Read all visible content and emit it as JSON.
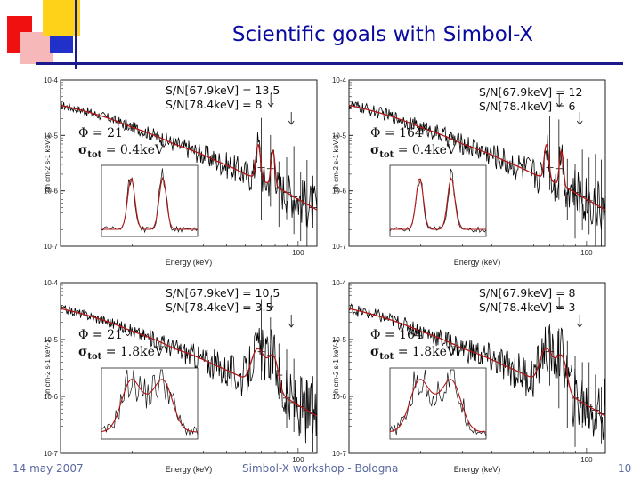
{
  "slide": {
    "title": "Scientific goals with Simbol-X",
    "footer_left": "14 may 2007",
    "footer_center": "Simbol-X workshop - Bologna",
    "footer_right": "10"
  },
  "colors": {
    "title": "#0a0aa0",
    "spectrum": "#000000",
    "model": "#b01818",
    "deco_red": "#f01010",
    "deco_yellow": "#ffd21a",
    "deco_blue": "#2030c8"
  },
  "chart_data": [
    {
      "type": "line",
      "panel": "top-left",
      "xlabel": "Energy (keV)",
      "ylabel": "ph cm-2 s-1 keV-1",
      "ytick_labels": [
        "10-4",
        "10-5",
        "10-6",
        "10-7"
      ],
      "xtick_labels": [
        "100"
      ],
      "xlim": [
        10,
        120
      ],
      "ylim": [
        1e-07,
        0.0001
      ],
      "sn": [
        "S/N[67.9keV] = 13.5",
        "S/N[78.4keV] = 8"
      ],
      "phi": "Φ  = 21’’",
      "sigma": "σtot = 0.4keV",
      "sigma_sym": "σ",
      "sigma_sub": "tot",
      "sigma_val": "= 0.4keV",
      "line_energies_keV": [
        67.9,
        78.4
      ],
      "series": [
        {
          "name": "data",
          "continuum_points": [
            [
              10,
              3.5e-05
            ],
            [
              20,
              1.4e-05
            ],
            [
              30,
              7e-06
            ],
            [
              45,
              3.5e-06
            ],
            [
              60,
              2e-06
            ],
            [
              80,
              1.2e-06
            ],
            [
              100,
              7e-07
            ],
            [
              120,
              4.5e-07
            ]
          ]
        },
        {
          "name": "model",
          "continuum_points": [
            [
              10,
              3.5e-05
            ],
            [
              20,
              1.4e-05
            ],
            [
              30,
              7e-06
            ],
            [
              45,
              3.5e-06
            ],
            [
              60,
              2e-06
            ],
            [
              80,
              1.2e-06
            ],
            [
              100,
              7e-07
            ],
            [
              120,
              4.5e-07
            ]
          ]
        }
      ]
    },
    {
      "type": "line",
      "panel": "top-right",
      "xlabel": "Energy (keV)",
      "ylabel": "ph cm-2 s-1 keV-1",
      "ytick_labels": [
        "10-4",
        "10-5",
        "10-6",
        "10-7"
      ],
      "xtick_labels": [
        "100"
      ],
      "xlim": [
        10,
        120
      ],
      "ylim": [
        1e-07,
        0.0001
      ],
      "sn": [
        "S/N[67.9keV] = 12",
        "S/N[78.4keV] = 6"
      ],
      "phi": "Φ  = 164’’",
      "sigma": "σtot = 0.4keV",
      "sigma_sym": "σ",
      "sigma_sub": "tot",
      "sigma_val": "= 0.4keV",
      "line_energies_keV": [
        67.9,
        78.4
      ],
      "series": [
        {
          "name": "data",
          "continuum_points": [
            [
              10,
              3.5e-05
            ],
            [
              20,
              1.4e-05
            ],
            [
              30,
              7e-06
            ],
            [
              45,
              3.5e-06
            ],
            [
              60,
              2e-06
            ],
            [
              80,
              1.2e-06
            ],
            [
              100,
              7e-07
            ],
            [
              120,
              4.5e-07
            ]
          ]
        },
        {
          "name": "model",
          "continuum_points": [
            [
              10,
              3.5e-05
            ],
            [
              20,
              1.4e-05
            ],
            [
              30,
              7e-06
            ],
            [
              45,
              3.5e-06
            ],
            [
              60,
              2e-06
            ],
            [
              80,
              1.2e-06
            ],
            [
              100,
              7e-07
            ],
            [
              120,
              4.5e-07
            ]
          ]
        }
      ]
    },
    {
      "type": "line",
      "panel": "bottom-left",
      "xlabel": "Energy (keV)",
      "ylabel": "ph cm-2 s-1 keV-1",
      "ytick_labels": [
        "10-4",
        "10-5",
        "10-6",
        "10-7"
      ],
      "xtick_labels": [
        "100"
      ],
      "xlim": [
        10,
        120
      ],
      "ylim": [
        1e-07,
        0.0001
      ],
      "sn": [
        "S/N[67.9keV] = 10.5",
        "S/N[78.4keV] = 3.5"
      ],
      "phi": "Φ  = 21’’",
      "sigma": "σtot = 1.8keV",
      "sigma_sym": "σ",
      "sigma_sub": "tot",
      "sigma_val": "= 1.8keV",
      "line_energies_keV": [
        67.9,
        78.4
      ],
      "series": [
        {
          "name": "data",
          "continuum_points": [
            [
              10,
              3.5e-05
            ],
            [
              20,
              1.4e-05
            ],
            [
              30,
              7e-06
            ],
            [
              45,
              3.5e-06
            ],
            [
              60,
              2e-06
            ],
            [
              80,
              1.2e-06
            ],
            [
              100,
              7e-07
            ],
            [
              120,
              4.5e-07
            ]
          ]
        },
        {
          "name": "model",
          "continuum_points": [
            [
              10,
              3.5e-05
            ],
            [
              20,
              1.4e-05
            ],
            [
              30,
              7e-06
            ],
            [
              45,
              3.5e-06
            ],
            [
              60,
              2e-06
            ],
            [
              80,
              1.2e-06
            ],
            [
              100,
              7e-07
            ],
            [
              120,
              4.5e-07
            ]
          ]
        }
      ]
    },
    {
      "type": "line",
      "panel": "bottom-right",
      "xlabel": "Energy (keV)",
      "ylabel": "ph cm-2 s-1 keV-1",
      "ytick_labels": [
        "10-4",
        "10-5",
        "10-6",
        "10-7"
      ],
      "xtick_labels": [
        "100"
      ],
      "xlim": [
        10,
        120
      ],
      "ylim": [
        1e-07,
        0.0001
      ],
      "sn": [
        "S/N[67.9keV] = 8",
        "S/N[78.4keV] = 3"
      ],
      "phi": "Φ  = 164’’",
      "sigma": "σtot = 1.8keV",
      "sigma_sym": "σ",
      "sigma_sub": "tot",
      "sigma_val": "= 1.8keV",
      "line_energies_keV": [
        67.9,
        78.4
      ],
      "series": [
        {
          "name": "data",
          "continuum_points": [
            [
              10,
              3.5e-05
            ],
            [
              20,
              1.4e-05
            ],
            [
              30,
              7e-06
            ],
            [
              45,
              3.5e-06
            ],
            [
              60,
              2e-06
            ],
            [
              80,
              1.2e-06
            ],
            [
              100,
              7e-07
            ],
            [
              120,
              4.5e-07
            ]
          ]
        },
        {
          "name": "model",
          "continuum_points": [
            [
              10,
              3.5e-05
            ],
            [
              20,
              1.4e-05
            ],
            [
              30,
              7e-06
            ],
            [
              45,
              3.5e-06
            ],
            [
              60,
              2e-06
            ],
            [
              80,
              1.2e-06
            ],
            [
              100,
              7e-07
            ],
            [
              120,
              4.5e-07
            ]
          ]
        }
      ]
    }
  ]
}
